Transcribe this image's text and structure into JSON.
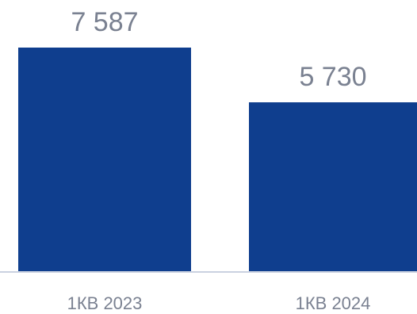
{
  "colors": {
    "bar": "#0f3e8e",
    "axis": "#b8c2d6",
    "text": "#7a8191"
  },
  "chart_data": {
    "type": "bar",
    "categories": [
      "1КВ 2023",
      "1КВ 2024"
    ],
    "values": [
      7587,
      5730
    ],
    "value_labels": [
      "7 587",
      "5 730"
    ],
    "title": "",
    "xlabel": "",
    "ylabel": "",
    "ylim": [
      0,
      7587
    ],
    "grid": false,
    "legend": "none"
  }
}
